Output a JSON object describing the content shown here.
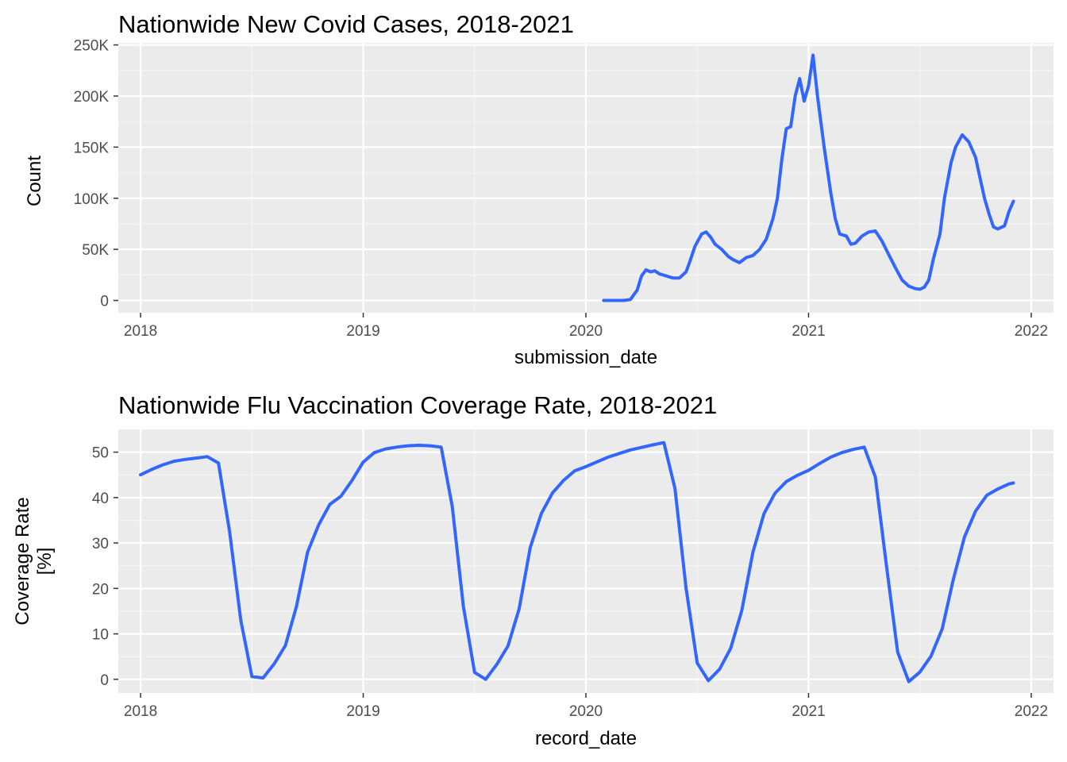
{
  "colors": {
    "panel_background": "#ebebeb",
    "grid_major": "#ffffff",
    "grid_minor": "#f5f5f5",
    "line": "#3366ff",
    "tick_text": "#4d4d4d",
    "title_text": "#000000"
  },
  "chart_data": [
    {
      "type": "line",
      "title": "Nationwide New Covid Cases, 2018-2021",
      "xlabel": "submission_date",
      "ylabel": "Count",
      "x_type": "year",
      "xlim": [
        2017.9,
        2022.1
      ],
      "ylim": [
        -12000,
        252000
      ],
      "x_ticks": [
        2018,
        2019,
        2020,
        2021,
        2022
      ],
      "x_tick_labels": [
        "2018",
        "2019",
        "2020",
        "2021",
        "2022"
      ],
      "y_ticks": [
        0,
        50000,
        100000,
        150000,
        200000,
        250000
      ],
      "y_tick_labels": [
        "0",
        "50K",
        "100K",
        "150K",
        "200K",
        "250K"
      ],
      "grid": true,
      "legend": "none",
      "series": [
        {
          "x": [
            2020.08,
            2020.12,
            2020.17,
            2020.2,
            2020.23,
            2020.25,
            2020.27,
            2020.29,
            2020.31,
            2020.33,
            2020.36,
            2020.39,
            2020.42,
            2020.45,
            2020.47,
            2020.49,
            2020.52,
            2020.54,
            2020.56,
            2020.58,
            2020.61,
            2020.64,
            2020.66,
            2020.69,
            2020.72,
            2020.75,
            2020.78,
            2020.81,
            2020.84,
            2020.86,
            2020.88,
            2020.9,
            2020.92,
            2020.94,
            2020.96,
            2020.98,
            2021.0,
            2021.02,
            2021.04,
            2021.07,
            2021.1,
            2021.12,
            2021.14,
            2021.17,
            2021.19,
            2021.21,
            2021.24,
            2021.27,
            2021.3,
            2021.33,
            2021.36,
            2021.39,
            2021.42,
            2021.45,
            2021.48,
            2021.5,
            2021.52,
            2021.54,
            2021.56,
            2021.59,
            2021.61,
            2021.64,
            2021.66,
            2021.69,
            2021.72,
            2021.75,
            2021.77,
            2021.79,
            2021.81,
            2021.83,
            2021.85,
            2021.88,
            2021.9,
            2021.92
          ],
          "y": [
            0,
            0,
            0,
            1000,
            10000,
            24000,
            30000,
            28000,
            29000,
            26000,
            24000,
            22000,
            22000,
            28000,
            40000,
            53000,
            65000,
            67000,
            62000,
            55000,
            50000,
            43000,
            40000,
            37000,
            42000,
            44000,
            50000,
            60000,
            80000,
            100000,
            138000,
            168000,
            170000,
            200000,
            217000,
            195000,
            210000,
            240000,
            200000,
            150000,
            105000,
            80000,
            65000,
            63000,
            55000,
            56000,
            63000,
            67000,
            68000,
            58000,
            45000,
            32000,
            20000,
            14000,
            11500,
            11000,
            13000,
            20000,
            40000,
            65000,
            100000,
            135000,
            150000,
            162000,
            155000,
            140000,
            120000,
            100000,
            85000,
            72000,
            70000,
            73000,
            87000,
            97000
          ]
        }
      ]
    },
    {
      "type": "line",
      "title": "Nationwide Flu Vaccination Coverage Rate, 2018-2021",
      "xlabel": "record_date",
      "ylabel": "Coverage Rate\n[%]",
      "ylabel_lines": [
        "Coverage Rate",
        "[%]"
      ],
      "x_type": "year",
      "xlim": [
        2017.9,
        2022.1
      ],
      "ylim": [
        -3,
        55
      ],
      "x_ticks": [
        2018,
        2019,
        2020,
        2021,
        2022
      ],
      "x_tick_labels": [
        "2018",
        "2019",
        "2020",
        "2021",
        "2022"
      ],
      "y_ticks": [
        0,
        10,
        20,
        30,
        40,
        50
      ],
      "y_tick_labels": [
        "0",
        "10",
        "20",
        "30",
        "40",
        "50"
      ],
      "grid": true,
      "legend": "none",
      "series": [
        {
          "x": [
            2018.0,
            2018.05,
            2018.1,
            2018.15,
            2018.2,
            2018.25,
            2018.3,
            2018.35,
            2018.4,
            2018.45,
            2018.5,
            2018.55,
            2018.6,
            2018.65,
            2018.7,
            2018.75,
            2018.8,
            2018.85,
            2018.9,
            2018.95,
            2019.0,
            2019.05,
            2019.1,
            2019.15,
            2019.2,
            2019.25,
            2019.3,
            2019.35,
            2019.4,
            2019.45,
            2019.5,
            2019.55,
            2019.6,
            2019.65,
            2019.7,
            2019.75,
            2019.8,
            2019.85,
            2019.9,
            2019.95,
            2020.0,
            2020.1,
            2020.2,
            2020.3,
            2020.35,
            2020.4,
            2020.45,
            2020.5,
            2020.55,
            2020.6,
            2020.65,
            2020.7,
            2020.75,
            2020.8,
            2020.85,
            2020.9,
            2020.95,
            2021.0,
            2021.05,
            2021.1,
            2021.15,
            2021.2,
            2021.25,
            2021.3,
            2021.35,
            2021.4,
            2021.45,
            2021.5,
            2021.55,
            2021.6,
            2021.65,
            2021.7,
            2021.75,
            2021.8,
            2021.85,
            2021.9,
            2021.92
          ],
          "y": [
            45,
            46.2,
            47.2,
            48,
            48.4,
            48.7,
            49,
            47.6,
            32.5,
            13,
            0.6,
            0.3,
            3.4,
            7.4,
            16,
            28,
            34,
            38.5,
            40.3,
            43.8,
            47.8,
            49.9,
            50.7,
            51.1,
            51.4,
            51.5,
            51.4,
            51.1,
            38,
            16,
            1.5,
            0,
            3.3,
            7.3,
            15.5,
            29,
            36.5,
            41,
            43.8,
            45.9,
            46.8,
            48.9,
            50.5,
            51.6,
            52.1,
            42,
            20,
            3.6,
            -0.3,
            2.2,
            6.8,
            15.1,
            28,
            36.5,
            41,
            43.5,
            44.9,
            46,
            47.5,
            48.9,
            49.9,
            50.6,
            51.1,
            44.5,
            25,
            6,
            -0.5,
            1.6,
            5.1,
            11.1,
            22,
            31.3,
            37,
            40.5,
            41.9,
            43,
            43.2
          ]
        }
      ]
    }
  ]
}
